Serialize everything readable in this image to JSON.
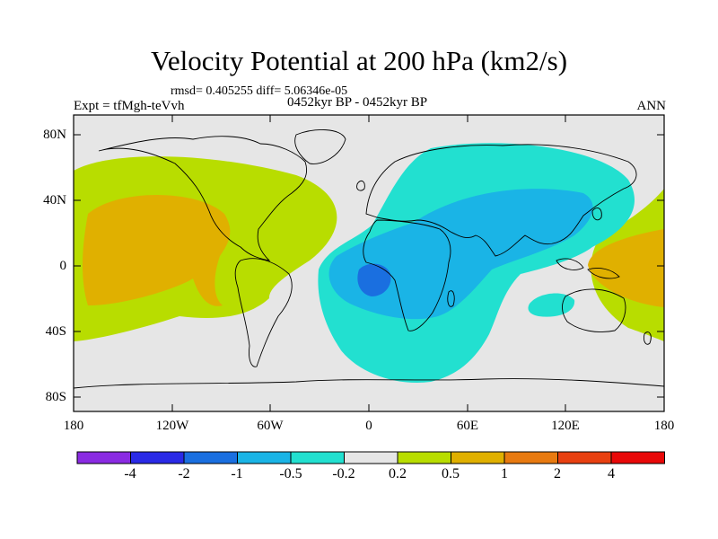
{
  "title": "Velocity Potential at 200 hPa (km2/s)",
  "stats": "rmsd= 0.405255 diff= 5.06346e-05",
  "expt": "Expt = tfMgh-teVvh",
  "period": "0452kyr BP - 0452kyr BP",
  "season": "ANN",
  "y_ticks": [
    "80N",
    "40N",
    "0",
    "40S",
    "80S"
  ],
  "x_ticks": [
    "180",
    "120W",
    "60W",
    "0",
    "60E",
    "120E",
    "180"
  ],
  "colorbar": {
    "labels": [
      "-4",
      "-2",
      "-1",
      "-0.5",
      "-0.2",
      "0.2",
      "0.5",
      "1",
      "2",
      "4"
    ],
    "colors": [
      "#8a2be2",
      "#2a2ae6",
      "#1a6fe0",
      "#1ab4e6",
      "#22e0d0",
      "#e6e6e6",
      "#b8dd00",
      "#e0b000",
      "#e87a10",
      "#e84010",
      "#e80808"
    ]
  },
  "colors": {
    "neutral": "#e6e6e6",
    "teal": "#22e0d0",
    "cyan": "#1ab4e6",
    "blue": "#1a6fe0",
    "yellow_green": "#b8dd00",
    "orange": "#e0b000"
  }
}
